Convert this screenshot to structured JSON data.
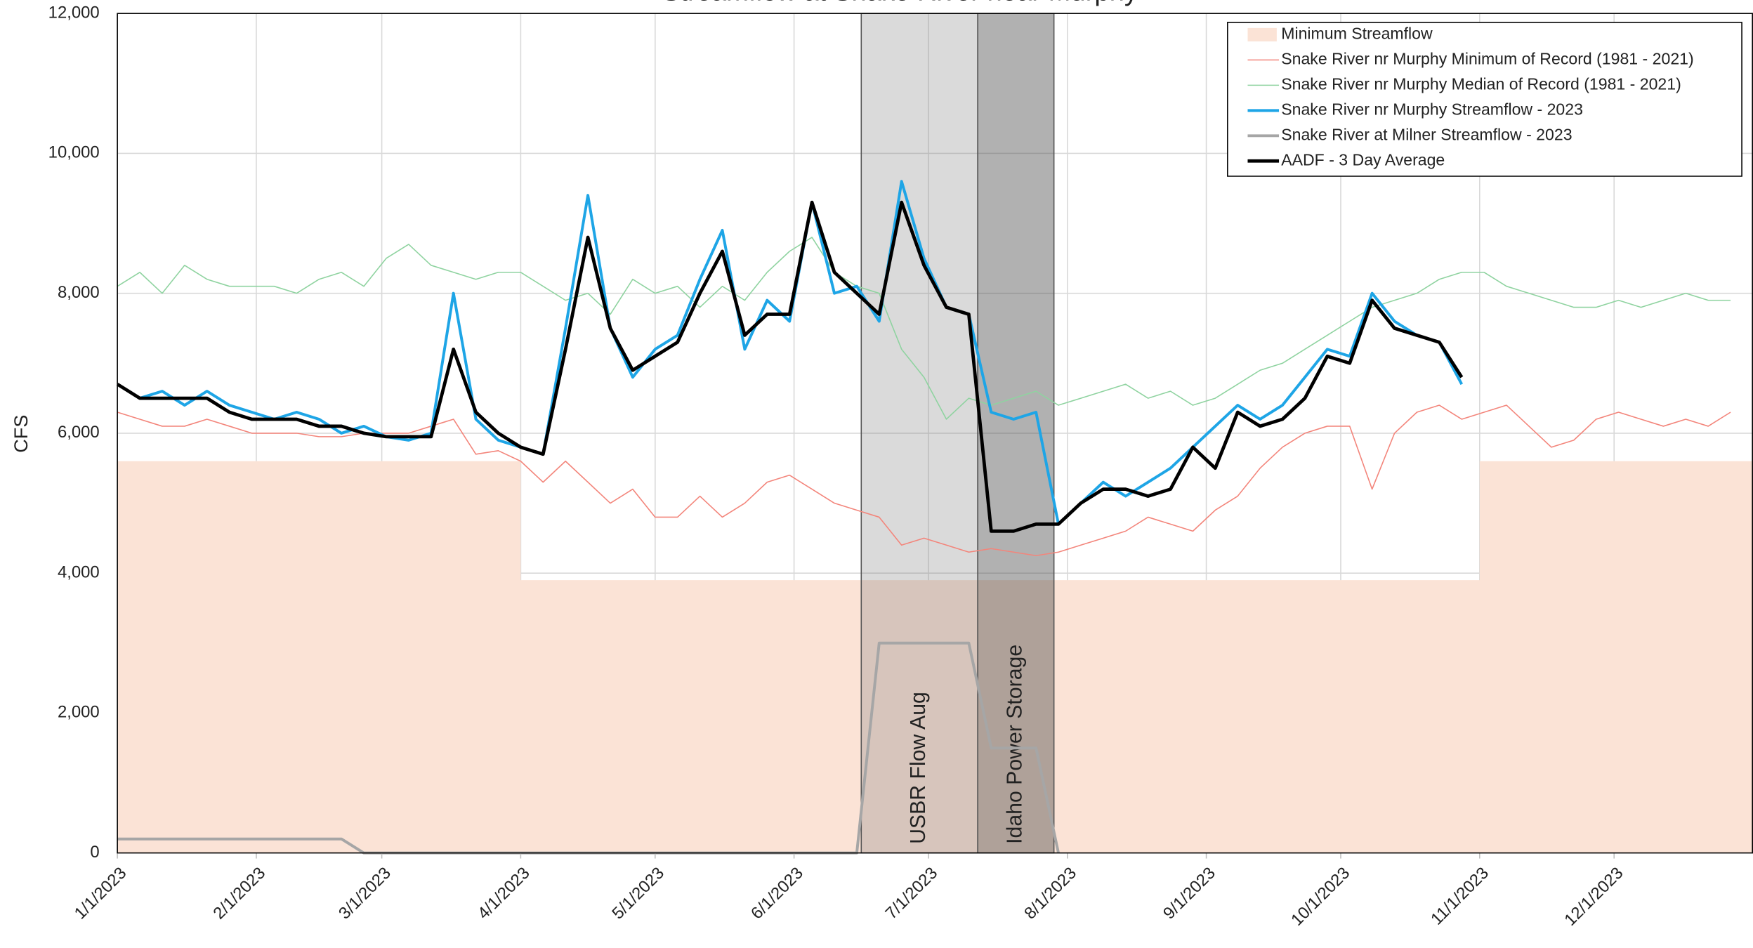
{
  "chart_data": {
    "type": "line",
    "title": "Streamflow at Snake River near Murphy",
    "y_label": "CFS",
    "xlim": [
      "2023-01-01",
      "2024-01-01"
    ],
    "xticks": [
      {
        "value": "2023-01-01",
        "label": "1/1/2023"
      },
      {
        "value": "2023-02-01",
        "label": "2/1/2023"
      },
      {
        "value": "2023-03-01",
        "label": "3/1/2023"
      },
      {
        "value": "2023-04-01",
        "label": "4/1/2023"
      },
      {
        "value": "2023-05-01",
        "label": "5/1/2023"
      },
      {
        "value": "2023-06-01",
        "label": "6/1/2023"
      },
      {
        "value": "2023-07-01",
        "label": "7/1/2023"
      },
      {
        "value": "2023-08-01",
        "label": "8/1/2023"
      },
      {
        "value": "2023-09-01",
        "label": "9/1/2023"
      },
      {
        "value": "2023-10-01",
        "label": "10/1/2023"
      },
      {
        "value": "2023-11-01",
        "label": "11/1/2023"
      },
      {
        "value": "2023-12-01",
        "label": "12/1/2023"
      }
    ],
    "ylim": [
      0,
      12000
    ],
    "yticks": [
      0,
      {
        "value": 2000,
        "label": "2,000"
      },
      {
        "value": 4000,
        "label": "4,000"
      },
      {
        "value": 6000,
        "label": "6,000"
      },
      {
        "value": 8000,
        "label": "8,000"
      },
      {
        "value": 10000,
        "label": "10,000"
      },
      {
        "value": 12000,
        "label": "12,000"
      }
    ],
    "grid": true,
    "legend": "upper right",
    "bands": [
      {
        "label": "USBR Flow Aug",
        "start": "2023-06-16",
        "end": "2023-07-12",
        "color": "rgba(120,120,120,0.27)"
      },
      {
        "label": "Idaho Power Storage",
        "start": "2023-07-12",
        "end": "2023-07-29",
        "color": "rgba(70,70,70,0.42)"
      }
    ],
    "x": [
      "2023-01-01",
      "2023-01-06",
      "2023-01-11",
      "2023-01-16",
      "2023-01-21",
      "2023-01-26",
      "2023-01-31",
      "2023-02-05",
      "2023-02-10",
      "2023-02-15",
      "2023-02-20",
      "2023-02-25",
      "2023-03-02",
      "2023-03-07",
      "2023-03-12",
      "2023-03-17",
      "2023-03-22",
      "2023-03-27",
      "2023-04-01",
      "2023-04-06",
      "2023-04-11",
      "2023-04-16",
      "2023-04-21",
      "2023-04-26",
      "2023-05-01",
      "2023-05-06",
      "2023-05-11",
      "2023-05-16",
      "2023-05-21",
      "2023-05-26",
      "2023-05-31",
      "2023-06-05",
      "2023-06-10",
      "2023-06-15",
      "2023-06-20",
      "2023-06-25",
      "2023-06-30",
      "2023-07-05",
      "2023-07-10",
      "2023-07-15",
      "2023-07-20",
      "2023-07-25",
      "2023-07-30",
      "2023-08-04",
      "2023-08-09",
      "2023-08-14",
      "2023-08-19",
      "2023-08-24",
      "2023-08-29",
      "2023-09-03",
      "2023-09-08",
      "2023-09-13",
      "2023-09-18",
      "2023-09-23",
      "2023-09-28",
      "2023-10-03",
      "2023-10-08",
      "2023-10-13",
      "2023-10-18",
      "2023-10-23",
      "2023-10-28",
      "2023-11-02",
      "2023-11-07",
      "2023-11-12",
      "2023-11-17",
      "2023-11-22",
      "2023-11-27",
      "2023-12-02",
      "2023-12-07",
      "2023-12-12",
      "2023-12-17",
      "2023-12-22",
      "2023-12-27"
    ],
    "series": [
      {
        "name": "Minimum Streamflow",
        "kind": "area",
        "color": "#fbe3d6",
        "x": [
          "2023-01-01",
          "2023-04-01",
          "2023-04-01",
          "2023-11-01",
          "2023-11-01",
          "2024-01-01"
        ],
        "values": [
          5600,
          5600,
          3900,
          3900,
          5600,
          5600
        ]
      },
      {
        "name": "Snake River nr Murphy Minimum of Record (1981 - 2021)",
        "color": "#f3857b",
        "width": 1,
        "values": [
          6300,
          6200,
          6100,
          6100,
          6200,
          6100,
          6000,
          6000,
          6000,
          5950,
          5950,
          6000,
          6000,
          6000,
          6100,
          6200,
          5700,
          5750,
          5600,
          5300,
          5600,
          5300,
          5000,
          5200,
          4800,
          4800,
          5100,
          4800,
          5000,
          5300,
          5400,
          5200,
          5000,
          4900,
          4800,
          4400,
          4500,
          4400,
          4300,
          4350,
          4300,
          4250,
          4300,
          4400,
          4500,
          4600,
          4800,
          4700,
          4600,
          4900,
          5100,
          5500,
          5800,
          6000,
          6100,
          6100,
          5200,
          6000,
          6300,
          6400,
          6200,
          6300,
          6400,
          6100,
          5800,
          5900,
          6200,
          6300,
          6200,
          6100,
          6200,
          6100,
          6300
        ]
      },
      {
        "name": "Snake River nr Murphy Median of Record (1981 - 2021)",
        "color": "#8fd3a0",
        "width": 1,
        "values": [
          8100,
          8300,
          8000,
          8400,
          8200,
          8100,
          8100,
          8100,
          8000,
          8200,
          8300,
          8100,
          8500,
          8700,
          8400,
          8300,
          8200,
          8300,
          8300,
          8100,
          7900,
          8000,
          7700,
          8200,
          8000,
          8100,
          7800,
          8100,
          7900,
          8300,
          8600,
          8800,
          8300,
          8100,
          8000,
          7200,
          6800,
          6200,
          6500,
          6400,
          6500,
          6600,
          6400,
          6500,
          6600,
          6700,
          6500,
          6600,
          6400,
          6500,
          6700,
          6900,
          7000,
          7200,
          7400,
          7600,
          7800,
          7900,
          8000,
          8200,
          8300,
          8300,
          8100,
          8000,
          7900,
          7800,
          7800,
          7900,
          7800,
          7900,
          8000,
          7900,
          7900
        ]
      },
      {
        "name": "Snake River nr Murphy Streamflow - 2023",
        "color": "#1ea5e6",
        "width": 2.5,
        "values": [
          6700,
          6500,
          6600,
          6400,
          6600,
          6400,
          6300,
          6200,
          6300,
          6200,
          6000,
          6100,
          5950,
          5900,
          6000,
          8000,
          6200,
          5900,
          5800,
          5700,
          7500,
          9400,
          7500,
          6800,
          7200,
          7400,
          8200,
          8900,
          7200,
          7900,
          7600,
          9300,
          8000,
          8100,
          7600,
          9600,
          8500,
          7800,
          7700,
          6300,
          6200,
          6300,
          4700,
          5000,
          5300,
          5100,
          5300,
          5500,
          5800,
          6100,
          6400,
          6200,
          6400,
          6800,
          7200,
          7100,
          8000,
          7600,
          7400,
          7300,
          6700,
          null,
          null,
          null,
          null,
          null,
          null,
          null,
          null,
          null,
          null,
          null,
          null
        ]
      },
      {
        "name": "Snake River at Milner Streamflow - 2023",
        "color": "#a6a6a6",
        "width": 2.5,
        "values": [
          200,
          200,
          200,
          200,
          200,
          200,
          200,
          200,
          200,
          200,
          200,
          0,
          0,
          0,
          0,
          0,
          0,
          0,
          0,
          0,
          0,
          0,
          0,
          0,
          0,
          0,
          0,
          0,
          0,
          0,
          0,
          0,
          0,
          0,
          3000,
          3000,
          3000,
          3000,
          3000,
          1500,
          1500,
          1500,
          0,
          null,
          null,
          null,
          null,
          null,
          null,
          null,
          null,
          null,
          null,
          null,
          null,
          null,
          null,
          null,
          null,
          null,
          null,
          null,
          null,
          null,
          null,
          null,
          null,
          null,
          null,
          null,
          null,
          null,
          null
        ]
      },
      {
        "name": "AADF - 3 Day Average",
        "color": "#000000",
        "width": 3,
        "values": [
          6700,
          6500,
          6500,
          6500,
          6500,
          6300,
          6200,
          6200,
          6200,
          6100,
          6100,
          6000,
          5950,
          5950,
          5950,
          7200,
          6300,
          6000,
          5800,
          5700,
          7200,
          8800,
          7500,
          6900,
          7100,
          7300,
          8000,
          8600,
          7400,
          7700,
          7700,
          9300,
          8300,
          8000,
          7700,
          9300,
          8400,
          7800,
          7700,
          4600,
          4600,
          4700,
          4700,
          5000,
          5200,
          5200,
          5100,
          5200,
          5800,
          5500,
          6300,
          6100,
          6200,
          6500,
          7100,
          7000,
          7900,
          7500,
          7400,
          7300,
          6800,
          null,
          null,
          null,
          null,
          null,
          null,
          null,
          null,
          null,
          null,
          null,
          null
        ]
      }
    ]
  }
}
